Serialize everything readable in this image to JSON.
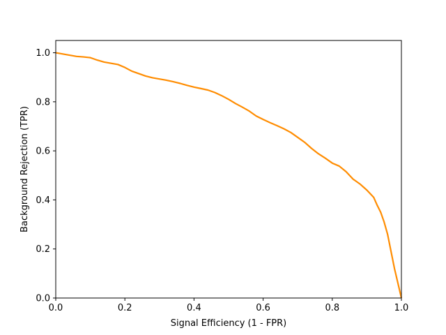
{
  "chart_data": {
    "type": "line",
    "title": "",
    "xlabel": "Signal Efficiency (1 - FPR)",
    "ylabel": "Background Rejection  (TPR)",
    "xlim": [
      0.0,
      1.0
    ],
    "ylim": [
      0.0,
      1.05
    ],
    "xticks": [
      0.0,
      0.2,
      0.4,
      0.6,
      0.8,
      1.0
    ],
    "yticks": [
      0.0,
      0.2,
      0.4,
      0.6,
      0.8,
      1.0
    ],
    "xtick_labels": [
      "0.0",
      "0.2",
      "0.4",
      "0.6",
      "0.8",
      "1.0"
    ],
    "ytick_labels": [
      "0.0",
      "0.2",
      "0.4",
      "0.6",
      "0.8",
      "1.0"
    ],
    "grid": false,
    "legend": "none",
    "series": [
      {
        "color": "#ff8c00",
        "x": [
          0.0,
          0.02,
          0.04,
          0.06,
          0.08,
          0.1,
          0.12,
          0.14,
          0.16,
          0.18,
          0.2,
          0.22,
          0.24,
          0.26,
          0.28,
          0.3,
          0.32,
          0.34,
          0.36,
          0.38,
          0.4,
          0.42,
          0.44,
          0.46,
          0.48,
          0.5,
          0.52,
          0.54,
          0.56,
          0.58,
          0.6,
          0.62,
          0.64,
          0.66,
          0.68,
          0.7,
          0.72,
          0.74,
          0.76,
          0.78,
          0.8,
          0.82,
          0.84,
          0.86,
          0.88,
          0.9,
          0.91,
          0.92,
          0.93,
          0.94,
          0.95,
          0.96,
          0.97,
          0.98,
          0.99,
          1.0
        ],
        "y": [
          1.0,
          0.995,
          0.99,
          0.985,
          0.983,
          0.98,
          0.97,
          0.962,
          0.957,
          0.952,
          0.94,
          0.925,
          0.915,
          0.905,
          0.898,
          0.893,
          0.888,
          0.882,
          0.875,
          0.867,
          0.86,
          0.854,
          0.848,
          0.838,
          0.825,
          0.81,
          0.793,
          0.778,
          0.762,
          0.742,
          0.728,
          0.715,
          0.703,
          0.69,
          0.675,
          0.655,
          0.635,
          0.61,
          0.588,
          0.57,
          0.55,
          0.538,
          0.515,
          0.485,
          0.465,
          0.44,
          0.425,
          0.41,
          0.378,
          0.35,
          0.31,
          0.26,
          0.19,
          0.12,
          0.06,
          0.0
        ]
      }
    ]
  }
}
